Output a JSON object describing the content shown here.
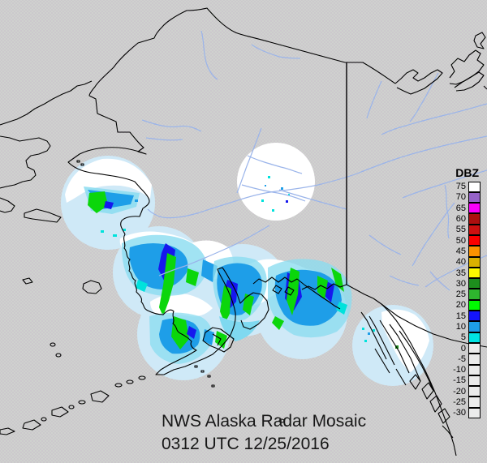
{
  "title": {
    "line1": "NWS Alaska Radar Mosaic",
    "line2": "0312 UTC 12/25/2016"
  },
  "legend": {
    "heading": "DBZ",
    "unit": "dBZ",
    "entries": [
      {
        "value": "75",
        "color": "#ffffff"
      },
      {
        "value": "70",
        "color": "#9663c8"
      },
      {
        "value": "65",
        "color": "#fb00fb"
      },
      {
        "value": "60",
        "color": "#ad0f0f"
      },
      {
        "value": "55",
        "color": "#cd1010"
      },
      {
        "value": "50",
        "color": "#fb0000"
      },
      {
        "value": "45",
        "color": "#fb9200"
      },
      {
        "value": "40",
        "color": "#d9b100"
      },
      {
        "value": "35",
        "color": "#fbfb00"
      },
      {
        "value": "30",
        "color": "#1d8e1d"
      },
      {
        "value": "25",
        "color": "#2eb52e"
      },
      {
        "value": "20",
        "color": "#00fb00"
      },
      {
        "value": "15",
        "color": "#1414fb"
      },
      {
        "value": "10",
        "color": "#1e9ee8"
      },
      {
        "value": "5",
        "color": "#00e4e4"
      },
      {
        "value": "0",
        "color": "#ececec"
      },
      {
        "value": "-5",
        "color": "#ececec"
      },
      {
        "value": "-10",
        "color": "#ececec"
      },
      {
        "value": "-15",
        "color": "#ececec"
      },
      {
        "value": "-20",
        "color": "#ececec"
      },
      {
        "value": "-25",
        "color": "#ececec"
      },
      {
        "value": "-30",
        "color": "#ececec"
      }
    ]
  },
  "map": {
    "colors": {
      "background": "#cfd2ce",
      "dither_dot": "#c3aac9",
      "coastline": "#000000",
      "river": "#9ab4ea",
      "border_line": "#000000",
      "radar_coverage_water": "#cfe9f7",
      "radar_coverage_land": "#ffffff",
      "echo_light": "#8adcf0",
      "echo_cyan": "#00e2dc",
      "echo_blue": "#1e9ee8",
      "echo_deep_blue": "#1617ee",
      "echo_green": "#0bd60b"
    }
  }
}
